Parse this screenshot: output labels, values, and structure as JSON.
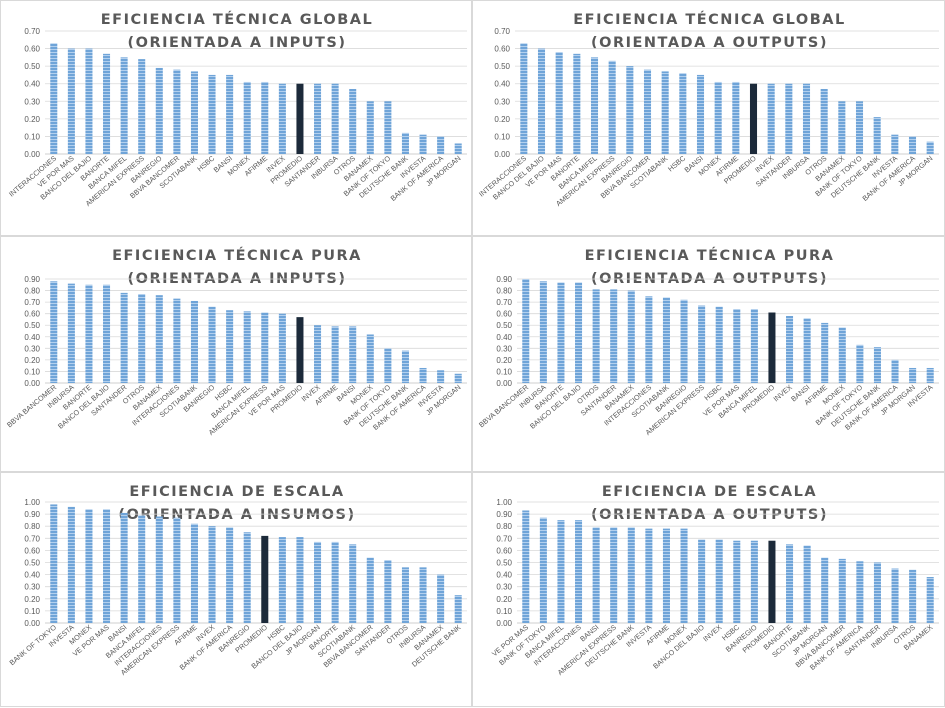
{
  "colors": {
    "bar": "#6fa4d8",
    "bar_stripe": "#b3d0ee",
    "highlight": "#1c2a3a",
    "grid": "#d9d9d9",
    "axis": "#bfbfbf",
    "text": "#595959"
  },
  "chart_data": [
    {
      "id": "global-inputs",
      "type": "bar",
      "title_line1": "EFICIENCIA TÉCNICA GLOBAL",
      "title_line2": "(ORIENTADA A INPUTS)",
      "ylim": [
        0,
        0.7
      ],
      "yticks": [
        "0.00",
        "0.10",
        "0.20",
        "0.30",
        "0.40",
        "0.50",
        "0.60",
        "0.70"
      ],
      "highlight": "PROMEDIO",
      "categories": [
        "INTERACCIONES",
        "VE POR MAS",
        "BANCO DEL BAJIO",
        "BANORTE",
        "BANCA MIFEL",
        "AMERICAN EXPRESS",
        "BANREGIO",
        "BBVA BANCOMER",
        "SCOTIABANK",
        "HSBC",
        "BANSI",
        "MONEX",
        "AFIRME",
        "INVEX",
        "PROMEDIO",
        "SANTANDER",
        "INBURSA",
        "OTROS",
        "BANAMEX",
        "BANK OF TOKYO",
        "DEUTSCHE BANK",
        "INVESTA",
        "BANK OF AMERICA",
        "JP MORGAN"
      ],
      "values": [
        0.63,
        0.6,
        0.6,
        0.57,
        0.55,
        0.54,
        0.49,
        0.48,
        0.47,
        0.45,
        0.45,
        0.41,
        0.41,
        0.4,
        0.4,
        0.4,
        0.4,
        0.37,
        0.3,
        0.3,
        0.12,
        0.11,
        0.1,
        0.06
      ]
    },
    {
      "id": "global-outputs",
      "type": "bar",
      "title_line1": "EFICIENCIA TÉCNICA GLOBAL",
      "title_line2": "(ORIENTADA A OUTPUTS)",
      "ylim": [
        0,
        0.7
      ],
      "yticks": [
        "0.00",
        "0.10",
        "0.20",
        "0.30",
        "0.40",
        "0.50",
        "0.60",
        "0.70"
      ],
      "highlight": "PROMEDIO",
      "categories": [
        "INTERACCIONES",
        "BANCO DEL BAJIO",
        "VE POR MAS",
        "BANORTE",
        "BANCA MIFEL",
        "AMERICAN EXPRESS",
        "BANREGIO",
        "BBVA BANCOMER",
        "SCOTIABANK",
        "HSBC",
        "BANSI",
        "MONEX",
        "AFIRME",
        "PROMEDIO",
        "INVEX",
        "SANTANDER",
        "INBURSA",
        "OTROS",
        "BANAMEX",
        "BANK OF TOKYO",
        "DEUTSCHE BANK",
        "INVESTA",
        "BANK OF AMERICA",
        "JP MORGAN"
      ],
      "values": [
        0.63,
        0.6,
        0.58,
        0.57,
        0.55,
        0.53,
        0.5,
        0.48,
        0.47,
        0.46,
        0.45,
        0.41,
        0.41,
        0.4,
        0.4,
        0.4,
        0.4,
        0.37,
        0.3,
        0.3,
        0.21,
        0.11,
        0.1,
        0.07
      ]
    },
    {
      "id": "pura-inputs",
      "type": "bar",
      "title_line1": "EFICIENCIA TÉCNICA PURA",
      "title_line2": "(ORIENTADA A INPUTS)",
      "ylim": [
        0,
        0.9
      ],
      "yticks": [
        "0.00",
        "0.10",
        "0.20",
        "0.30",
        "0.40",
        "0.50",
        "0.60",
        "0.70",
        "0.80",
        "0.90"
      ],
      "highlight": "PROMEDIO",
      "categories": [
        "BBVA BANCOMER",
        "INBURSA",
        "BANORTE",
        "BANCO DEL BAJIO",
        "SANTANDER",
        "OTROS",
        "BANAMEX",
        "INTERACCIONES",
        "SCOTIABANK",
        "BANREGIO",
        "HSBC",
        "BANCA MIFEL",
        "AMERICAN EXPRESS",
        "VE POR MAS",
        "PROMEDIO",
        "INVEX",
        "AFIRME",
        "BANSI",
        "MONEX",
        "BANK OF TOKYO",
        "DEUTSCHE BANK",
        "BANK OF AMERICA",
        "INVESTA",
        "JP MORGAN"
      ],
      "values": [
        0.88,
        0.86,
        0.85,
        0.85,
        0.78,
        0.77,
        0.76,
        0.73,
        0.71,
        0.66,
        0.63,
        0.62,
        0.61,
        0.6,
        0.57,
        0.5,
        0.49,
        0.49,
        0.42,
        0.3,
        0.28,
        0.13,
        0.11,
        0.08
      ]
    },
    {
      "id": "pura-outputs",
      "type": "bar",
      "title_line1": "EFICIENCIA TÉCNICA PURA",
      "title_line2": "(ORIENTADA A OUTPUTS)",
      "ylim": [
        0,
        0.9
      ],
      "yticks": [
        "0.00",
        "0.10",
        "0.20",
        "0.30",
        "0.40",
        "0.50",
        "0.60",
        "0.70",
        "0.80",
        "0.90"
      ],
      "highlight": "PROMEDIO",
      "categories": [
        "BBVA BANCOMER",
        "INBURSA",
        "BANORTE",
        "BANCO DEL BAJIO",
        "OTROS",
        "SANTANDER",
        "BANAMEX",
        "INTERACCIONES",
        "SCOTIABANK",
        "BANREGIO",
        "AMERICAN EXPRESS",
        "HSBC",
        "VE POR MAS",
        "BANCA MIFEL",
        "PROMEDIO",
        "INVEX",
        "BANSI",
        "AFIRME",
        "MONEX",
        "BANK OF TOKYO",
        "DEUTSCHE BANK",
        "BANK OF AMERICA",
        "JP MORGAN",
        "INVESTA"
      ],
      "values": [
        0.9,
        0.88,
        0.87,
        0.87,
        0.81,
        0.81,
        0.8,
        0.75,
        0.74,
        0.72,
        0.67,
        0.66,
        0.64,
        0.64,
        0.61,
        0.58,
        0.56,
        0.52,
        0.48,
        0.33,
        0.31,
        0.2,
        0.13,
        0.13
      ]
    },
    {
      "id": "escala-insumos",
      "type": "bar",
      "title_line1": "EFICIENCIA DE ESCALA",
      "title_line2": "(ORIENTADA A INSUMOS)",
      "ylim": [
        0,
        1.0
      ],
      "yticks": [
        "0.00",
        "0.10",
        "0.20",
        "0.30",
        "0.40",
        "0.50",
        "0.60",
        "0.70",
        "0.80",
        "0.90",
        "1.00"
      ],
      "highlight": "PROMEDIO",
      "categories": [
        "BANK OF TOKYO",
        "INVESTA",
        "MONEX",
        "VE POR MAS",
        "BANSI",
        "BANCA MIFEL",
        "INTERACCIONES",
        "AMERICAN EXPRESS",
        "AFIRME",
        "INVEX",
        "BANK OF AMERICA",
        "BANREGIO",
        "PROMEDIO",
        "HSBC",
        "BANCO DEL BAJIO",
        "JP MORGAN",
        "BANORTE",
        "SCOTIABANK",
        "BBVA BANCOMER",
        "SANTANDER",
        "OTROS",
        "INBURSA",
        "BANAMEX",
        "DEUTSCHE BANK"
      ],
      "values": [
        0.98,
        0.96,
        0.94,
        0.94,
        0.91,
        0.89,
        0.88,
        0.87,
        0.82,
        0.8,
        0.79,
        0.75,
        0.72,
        0.71,
        0.71,
        0.67,
        0.67,
        0.65,
        0.54,
        0.52,
        0.46,
        0.46,
        0.4,
        0.23
      ]
    },
    {
      "id": "escala-outputs",
      "type": "bar",
      "title_line1": "EFICIENCIA DE ESCALA",
      "title_line2": "(ORIENTADA A OUTPUTS)",
      "ylim": [
        0,
        1.0
      ],
      "yticks": [
        "0.00",
        "0.10",
        "0.20",
        "0.30",
        "0.40",
        "0.50",
        "0.60",
        "0.70",
        "0.80",
        "0.90",
        "1.00"
      ],
      "highlight": "PROMEDIO",
      "categories": [
        "VE POR MAS",
        "BANK OF TOKYO",
        "BANCA MIFEL",
        "INTERACCIONES",
        "BANSI",
        "AMERICAN EXPRESS",
        "DEUTSCHE BANK",
        "INVESTA",
        "AFIRME",
        "MONEX",
        "BANCO DEL BAJIO",
        "INVEX",
        "HSBC",
        "BANREGIO",
        "PROMEDIO",
        "BANORTE",
        "SCOTIABANK",
        "JP MORGAN",
        "BBVA BANCOMER",
        "BANK OF AMERICA",
        "SANTANDER",
        "INBURSA",
        "OTROS",
        "BANAMEX"
      ],
      "values": [
        0.93,
        0.87,
        0.85,
        0.85,
        0.79,
        0.79,
        0.79,
        0.78,
        0.78,
        0.78,
        0.69,
        0.69,
        0.68,
        0.68,
        0.68,
        0.65,
        0.64,
        0.54,
        0.53,
        0.51,
        0.5,
        0.45,
        0.44,
        0.38
      ]
    }
  ]
}
